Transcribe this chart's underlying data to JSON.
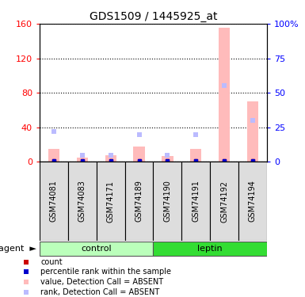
{
  "title": "GDS1509 / 1445925_at",
  "samples": [
    "GSM74081",
    "GSM74083",
    "GSM74171",
    "GSM74189",
    "GSM74190",
    "GSM74191",
    "GSM74192",
    "GSM74194"
  ],
  "groups": [
    "control",
    "control",
    "control",
    "control",
    "leptin",
    "leptin",
    "leptin",
    "leptin"
  ],
  "group_colors": [
    "#bbffbb",
    "#33dd33"
  ],
  "pink_bars": [
    15,
    5,
    8,
    18,
    7,
    15,
    155,
    70
  ],
  "blue_rank_pct": [
    22,
    5,
    5,
    20,
    5,
    20,
    55,
    30
  ],
  "red_count_val": [
    2,
    2,
    2,
    2,
    2,
    2,
    2,
    2
  ],
  "dark_blue_pct_val": [
    2,
    2,
    2,
    2,
    2,
    2,
    2,
    2
  ],
  "ylim_left": [
    0,
    160
  ],
  "ylim_right": [
    0,
    100
  ],
  "yticks_left": [
    0,
    40,
    80,
    120,
    160
  ],
  "ytick_labels_left": [
    "0",
    "40",
    "80",
    "120",
    "160"
  ],
  "yticks_right": [
    0,
    25,
    50,
    75,
    100
  ],
  "ytick_labels_right": [
    "0",
    "25",
    "50",
    "75",
    "100%"
  ],
  "bar_color": "#ffbbbb",
  "rank_color": "#bbbbff",
  "count_color": "#cc0000",
  "pct_color": "#0000cc",
  "bg_color": "#ffffff",
  "legend_items": [
    {
      "label": "count",
      "color": "#cc0000"
    },
    {
      "label": "percentile rank within the sample",
      "color": "#0000cc"
    },
    {
      "label": "value, Detection Call = ABSENT",
      "color": "#ffbbbb"
    },
    {
      "label": "rank, Detection Call = ABSENT",
      "color": "#bbbbff"
    }
  ],
  "agent_label": "agent",
  "sample_box_color": "#dddddd",
  "bar_width": 0.4
}
